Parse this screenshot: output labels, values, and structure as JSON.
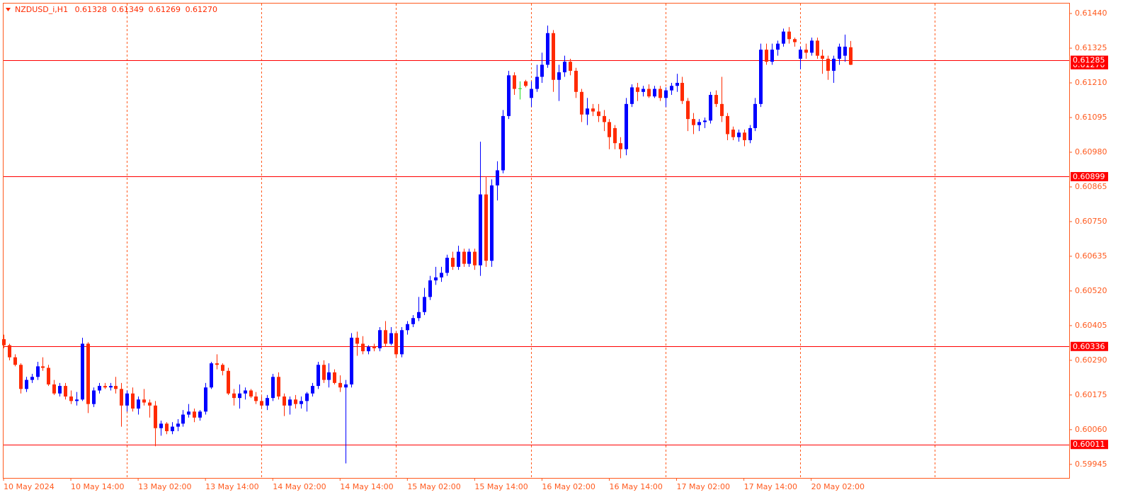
{
  "chart_data": {
    "type": "candlestick",
    "header": {
      "symbol": "NZDUSD_i,H1",
      "values": [
        "0.61328",
        "0.61349",
        "0.61269",
        "0.61270"
      ]
    },
    "categories": [
      "10 May 2024",
      null,
      null,
      null,
      null,
      null,
      null,
      null,
      null,
      null,
      null,
      null,
      "10 May 14:00",
      null,
      null,
      null,
      null,
      null,
      null,
      null,
      null,
      null,
      null,
      null,
      "13 May 02:00",
      null,
      null,
      null,
      null,
      null,
      null,
      null,
      null,
      null,
      null,
      null,
      "13 May 14:00",
      null,
      null,
      null,
      null,
      null,
      null,
      null,
      null,
      null,
      null,
      null,
      "14 May 02:00",
      null,
      null,
      null,
      null,
      null,
      null,
      null,
      null,
      null,
      null,
      null,
      "14 May 14:00",
      null,
      null,
      null,
      null,
      null,
      null,
      null,
      null,
      null,
      null,
      null,
      "15 May 02:00",
      null,
      null,
      null,
      null,
      null,
      null,
      null,
      null,
      null,
      null,
      null,
      "15 May 14:00",
      null,
      null,
      null,
      null,
      null,
      null,
      null,
      null,
      null,
      null,
      null,
      "16 May 02:00",
      null,
      null,
      null,
      null,
      null,
      null,
      null,
      null,
      null,
      null,
      null,
      "16 May 14:00",
      null,
      null,
      null,
      null,
      null,
      null,
      null,
      null,
      null,
      null,
      null,
      "17 May 02:00",
      null,
      null,
      null,
      null,
      null,
      null,
      null,
      null,
      null,
      null,
      null,
      "17 May 14:00",
      null,
      null,
      null,
      null,
      null,
      null,
      null,
      null,
      null,
      null,
      null,
      "20 May 02:00",
      null,
      null,
      null,
      null,
      null,
      null,
      null
    ],
    "ohlc": {
      "open": [
        0.6036,
        0.6034,
        0.603,
        0.60275,
        0.60195,
        0.60225,
        0.60235,
        0.6027,
        0.60265,
        0.6021,
        0.6018,
        0.60205,
        0.6017,
        0.60155,
        0.6016,
        0.60345,
        0.60145,
        0.6019,
        0.60205,
        0.602,
        0.60205,
        0.60195,
        0.6014,
        0.6018,
        0.6013,
        0.6016,
        0.6015,
        0.6014,
        0.60065,
        0.6008,
        0.60055,
        0.6007,
        0.6008,
        0.6011,
        0.6012,
        0.601,
        0.6012,
        0.602,
        0.6028,
        0.60275,
        0.60255,
        0.6018,
        0.60165,
        0.6018,
        0.6019,
        0.6017,
        0.60155,
        0.6014,
        0.60165,
        0.60235,
        0.6017,
        0.6014,
        0.6016,
        0.60145,
        0.60155,
        0.6018,
        0.60205,
        0.60275,
        0.60225,
        0.6025,
        0.60215,
        0.602,
        0.6021,
        0.60365,
        0.60345,
        0.6032,
        0.60335,
        0.6033,
        0.6039,
        0.60345,
        0.6038,
        0.6031,
        0.6039,
        0.6041,
        0.6043,
        0.6045,
        0.605,
        0.60555,
        0.60565,
        0.6058,
        0.6063,
        0.606,
        0.6065,
        0.6061,
        0.6065,
        0.60605,
        0.6084,
        0.6062,
        0.6087,
        0.6092,
        0.611,
        0.61235,
        0.61192,
        0.61215,
        0.6116,
        0.6119,
        0.6123,
        0.6127,
        0.61375,
        0.6122,
        0.61245,
        0.6128,
        0.6125,
        0.6118,
        0.61105,
        0.61125,
        0.61115,
        0.611,
        0.6108,
        0.6106,
        0.6101,
        0.6099,
        0.6114,
        0.61195,
        0.6118,
        0.6119,
        0.61165,
        0.6119,
        0.6116,
        0.61185,
        0.612,
        0.6121,
        0.6115,
        0.6109,
        0.6107,
        0.6108,
        0.61085,
        0.6117,
        0.6114,
        0.611,
        0.61055,
        0.6103,
        0.61045,
        0.6102,
        0.6106,
        0.6114,
        0.6132,
        0.6128,
        0.6132,
        0.6134,
        0.6138,
        0.61355,
        0.6129,
        0.6132,
        0.6131,
        0.6135,
        0.613,
        0.6129,
        0.6125,
        0.6129,
        0.613,
        0.61328
      ],
      "high": [
        0.60375,
        0.60345,
        0.6031,
        0.6028,
        0.60235,
        0.60245,
        0.60285,
        0.603,
        0.60275,
        0.60225,
        0.60215,
        0.60215,
        0.6019,
        0.60185,
        0.60365,
        0.6035,
        0.602,
        0.60215,
        0.60215,
        0.60215,
        0.60235,
        0.60215,
        0.6019,
        0.602,
        0.6017,
        0.60195,
        0.6016,
        0.60155,
        0.6009,
        0.60085,
        0.60085,
        0.60095,
        0.60125,
        0.60145,
        0.6013,
        0.60125,
        0.60215,
        0.60285,
        0.6031,
        0.6028,
        0.60265,
        0.60195,
        0.6021,
        0.602,
        0.60195,
        0.60185,
        0.6017,
        0.60175,
        0.60245,
        0.6025,
        0.6018,
        0.6017,
        0.60175,
        0.6017,
        0.60185,
        0.60215,
        0.60285,
        0.6029,
        0.6028,
        0.6026,
        0.6024,
        0.60225,
        0.6038,
        0.60385,
        0.6037,
        0.6034,
        0.60345,
        0.604,
        0.6042,
        0.604,
        0.60385,
        0.604,
        0.6042,
        0.6044,
        0.605,
        0.6053,
        0.6057,
        0.606,
        0.606,
        0.6064,
        0.6065,
        0.6067,
        0.6066,
        0.6066,
        0.6066,
        0.61015,
        0.609,
        0.6089,
        0.6095,
        0.6112,
        0.6125,
        0.61245,
        0.61215,
        0.6122,
        0.61215,
        0.6127,
        0.6131,
        0.614,
        0.61385,
        0.6127,
        0.613,
        0.6129,
        0.6126,
        0.6119,
        0.6116,
        0.6114,
        0.6114,
        0.6112,
        0.6109,
        0.6107,
        0.6103,
        0.6116,
        0.61205,
        0.6121,
        0.612,
        0.61205,
        0.612,
        0.612,
        0.61195,
        0.6121,
        0.6124,
        0.6123,
        0.6116,
        0.6111,
        0.6109,
        0.61095,
        0.6118,
        0.61185,
        0.6123,
        0.6111,
        0.61065,
        0.61055,
        0.61055,
        0.6107,
        0.6116,
        0.6134,
        0.6134,
        0.6134,
        0.6135,
        0.6139,
        0.61395,
        0.6136,
        0.6133,
        0.6134,
        0.6136,
        0.6136,
        0.6132,
        0.613,
        0.613,
        0.6134,
        0.6137,
        0.61349
      ],
      "low": [
        0.6033,
        0.6029,
        0.6027,
        0.6018,
        0.60185,
        0.60215,
        0.60225,
        0.60255,
        0.60205,
        0.60175,
        0.6017,
        0.6016,
        0.60145,
        0.6014,
        0.60155,
        0.60115,
        0.60135,
        0.6018,
        0.60195,
        0.6019,
        0.6018,
        0.6007,
        0.6012,
        0.6012,
        0.6011,
        0.6014,
        0.601,
        0.60005,
        0.6004,
        0.60045,
        0.60045,
        0.60055,
        0.6007,
        0.601,
        0.60085,
        0.6009,
        0.6011,
        0.60195,
        0.6026,
        0.6024,
        0.60175,
        0.6014,
        0.6013,
        0.6016,
        0.60165,
        0.60145,
        0.6013,
        0.60125,
        0.60155,
        0.6016,
        0.60105,
        0.6011,
        0.6013,
        0.6013,
        0.6012,
        0.6017,
        0.60195,
        0.60215,
        0.602,
        0.6021,
        0.60185,
        0.59948,
        0.602,
        0.60305,
        0.6031,
        0.6031,
        0.6032,
        0.6032,
        0.60335,
        0.6034,
        0.603,
        0.603,
        0.60375,
        0.604,
        0.6042,
        0.6044,
        0.6049,
        0.6054,
        0.6055,
        0.6057,
        0.6059,
        0.6059,
        0.606,
        0.606,
        0.6059,
        0.6057,
        0.606,
        0.606,
        0.6082,
        0.6091,
        0.6109,
        0.6117,
        0.61155,
        0.61195,
        0.6113,
        0.6118,
        0.6121,
        0.6126,
        0.6118,
        0.6115,
        0.6123,
        0.61235,
        0.6116,
        0.6108,
        0.6107,
        0.611,
        0.6108,
        0.6105,
        0.6099,
        0.6099,
        0.6096,
        0.6097,
        0.6113,
        0.6115,
        0.61165,
        0.6116,
        0.6116,
        0.6115,
        0.6113,
        0.6117,
        0.6118,
        0.6114,
        0.6105,
        0.6104,
        0.6105,
        0.6106,
        0.61075,
        0.6113,
        0.6108,
        0.6102,
        0.6102,
        0.61015,
        0.61,
        0.6101,
        0.6105,
        0.6113,
        0.6127,
        0.6127,
        0.613,
        0.6133,
        0.6134,
        0.6133,
        0.61255,
        0.6129,
        0.613,
        0.6129,
        0.6124,
        0.6122,
        0.6121,
        0.6127,
        0.6128,
        0.61269
      ],
      "close": [
        0.6034,
        0.603,
        0.60275,
        0.60195,
        0.60225,
        0.60235,
        0.6027,
        0.60265,
        0.6021,
        0.6018,
        0.60205,
        0.6017,
        0.60155,
        0.6016,
        0.60345,
        0.60145,
        0.6019,
        0.60205,
        0.602,
        0.60205,
        0.60195,
        0.6014,
        0.6018,
        0.6013,
        0.6016,
        0.6015,
        0.6014,
        0.60065,
        0.6008,
        0.60055,
        0.6007,
        0.6008,
        0.6011,
        0.6012,
        0.601,
        0.6012,
        0.602,
        0.6028,
        0.60275,
        0.60255,
        0.6018,
        0.60165,
        0.6018,
        0.6019,
        0.6017,
        0.60155,
        0.6014,
        0.60165,
        0.60235,
        0.6017,
        0.6014,
        0.6016,
        0.60145,
        0.60155,
        0.6018,
        0.60205,
        0.60275,
        0.60225,
        0.6025,
        0.60215,
        0.602,
        0.6021,
        0.60365,
        0.60345,
        0.6032,
        0.60335,
        0.6033,
        0.6039,
        0.60345,
        0.6038,
        0.6031,
        0.6039,
        0.6041,
        0.6043,
        0.6045,
        0.605,
        0.60555,
        0.60565,
        0.6058,
        0.6063,
        0.606,
        0.6065,
        0.6061,
        0.6065,
        0.60605,
        0.6084,
        0.6062,
        0.6087,
        0.6092,
        0.611,
        0.61235,
        0.6119,
        0.61192,
        0.612,
        0.6119,
        0.6123,
        0.6127,
        0.61375,
        0.6122,
        0.61245,
        0.6128,
        0.6125,
        0.6118,
        0.61105,
        0.61125,
        0.61115,
        0.611,
        0.6108,
        0.6103,
        0.6101,
        0.6099,
        0.6114,
        0.61195,
        0.6118,
        0.6119,
        0.61165,
        0.6119,
        0.6116,
        0.61185,
        0.612,
        0.6121,
        0.6115,
        0.6109,
        0.6107,
        0.6108,
        0.61085,
        0.6117,
        0.6114,
        0.611,
        0.6104,
        0.6103,
        0.61045,
        0.6102,
        0.6106,
        0.6114,
        0.6132,
        0.6128,
        0.6132,
        0.6134,
        0.6138,
        0.61355,
        0.61345,
        0.6132,
        0.6131,
        0.6135,
        0.613,
        0.6129,
        0.6125,
        0.6129,
        0.6133,
        0.6133,
        0.6127
      ]
    },
    "xlim": [
      0,
      190
    ],
    "ylim": [
      0.599,
      0.61473
    ],
    "yticks": [
      {
        "value": 0.6144,
        "label": "0.61440"
      },
      0.61325,
      {
        "value": 0.6121,
        "label": "0.61210"
      },
      0.61095,
      {
        "value": 0.6098,
        "label": "0.60980"
      },
      0.60865,
      {
        "value": 0.6075,
        "label": "0.60750"
      },
      0.60635,
      {
        "value": 0.6052,
        "label": "0.60520"
      },
      0.60405,
      {
        "value": 0.6029,
        "label": "0.60290"
      },
      0.60175,
      {
        "value": 0.6006,
        "label": "0.60060"
      },
      0.59945
    ],
    "levels": [
      0.61285,
      0.60899,
      0.60336,
      0.60011
    ],
    "bid": {
      "value": 0.6127,
      "label": "0.61270"
    },
    "period_separators": [
      22,
      46,
      70,
      94,
      118,
      142,
      166
    ],
    "bull_color": "#0000ff",
    "bear_color": "#ff2a00",
    "doji_color": "#22dd22",
    "level_color": "#ff0000",
    "axis_color": "#ff5a1e"
  }
}
